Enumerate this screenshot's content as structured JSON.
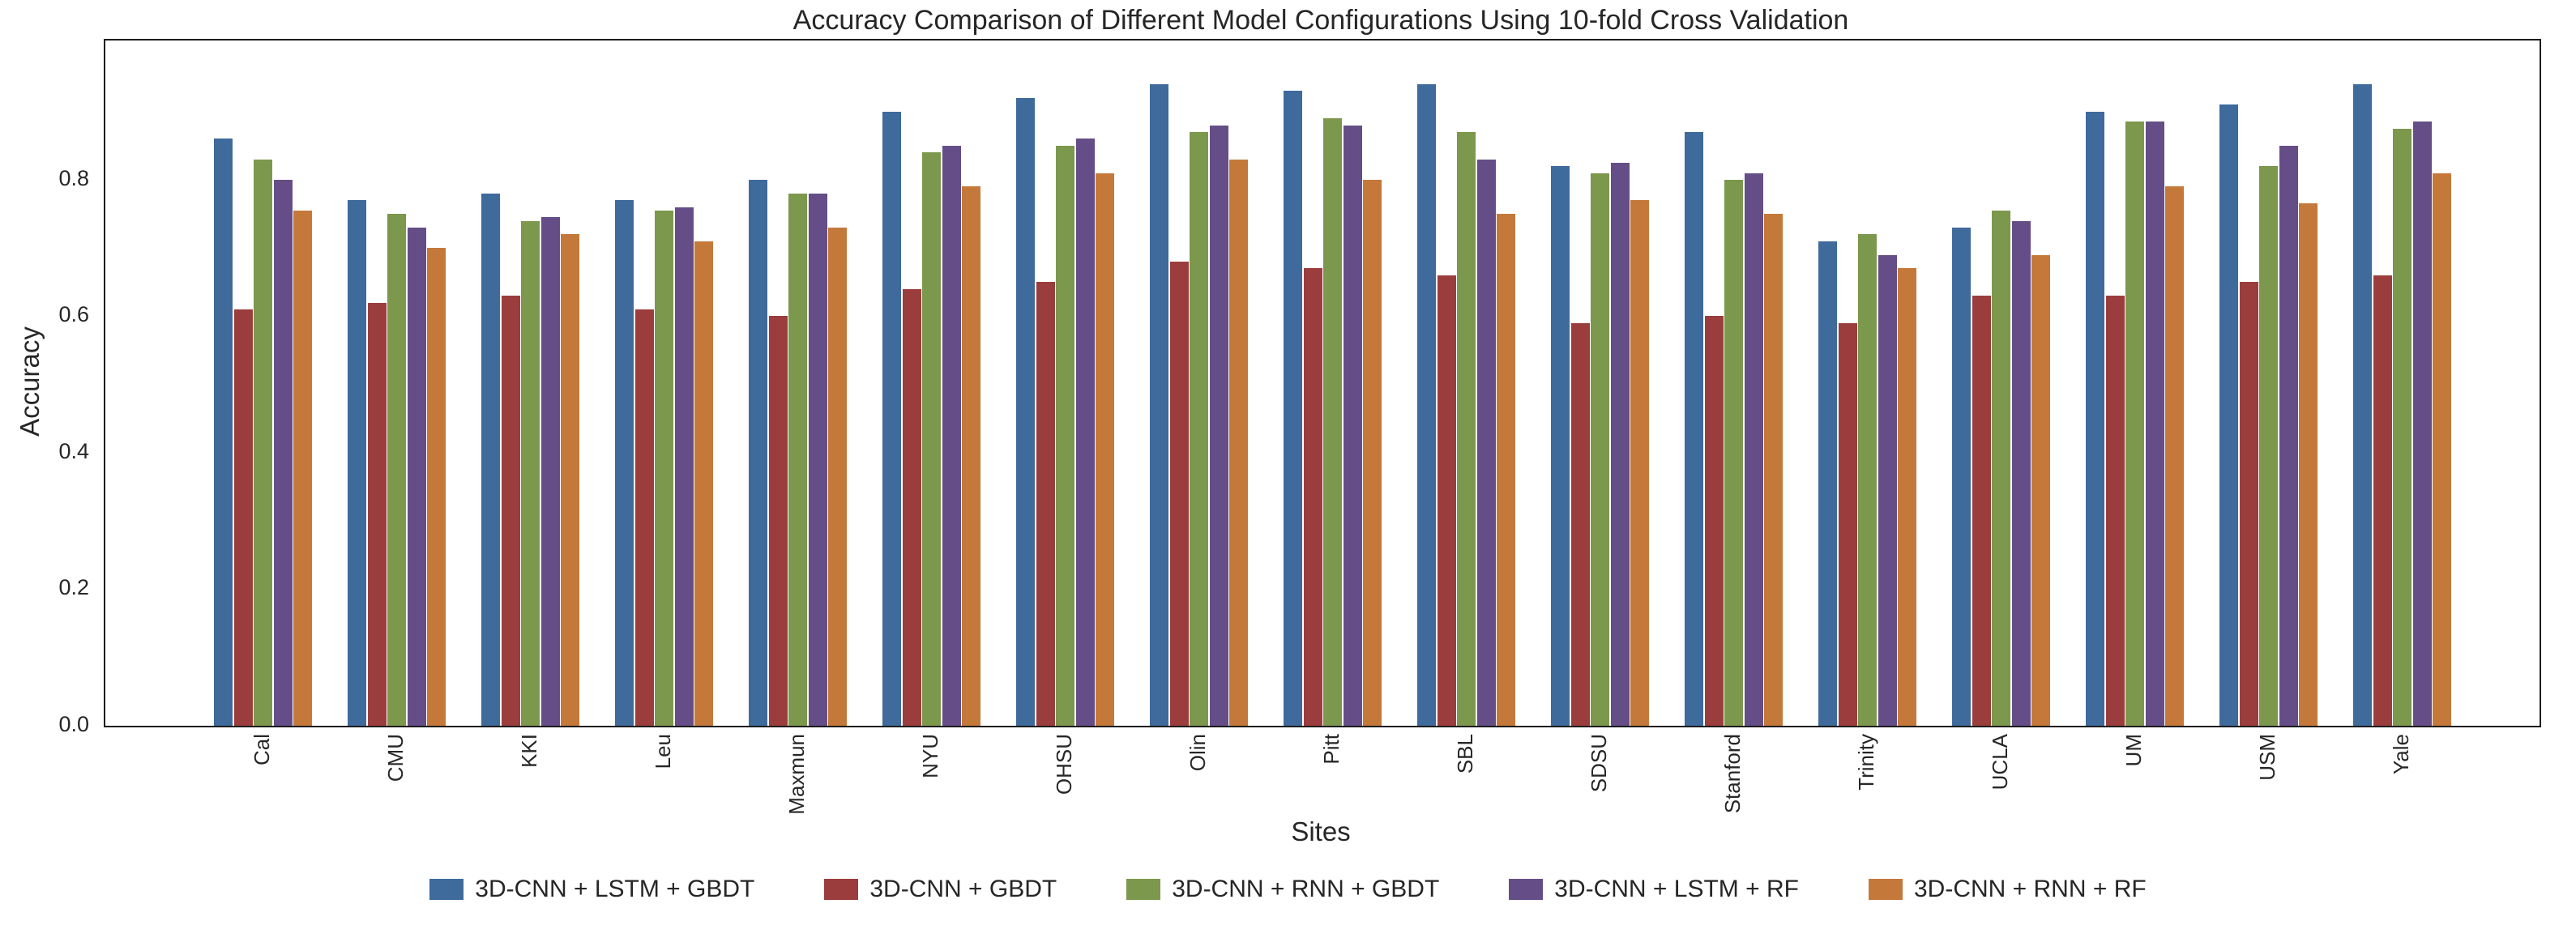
{
  "chart_data": {
    "type": "bar",
    "title": "Accuracy Comparison of Different Model Configurations Using 10-fold Cross Validation",
    "xlabel": "Sites",
    "ylabel": "Accuracy",
    "ylim": [
      0,
      1.004
    ],
    "yticks": [
      0.0,
      0.2,
      0.4,
      0.6,
      0.8
    ],
    "ytick_labels": [
      "0.0",
      "0.2",
      "0.4",
      "0.6",
      "0.8"
    ],
    "grid": false,
    "legend_position": "bottom",
    "background_color": "#ffffff",
    "spine_color": "#1c1c1c",
    "text_color": "#262626",
    "categories": [
      "Cal",
      "CMU",
      "KKI",
      "Leu",
      "Maxmun",
      "NYU",
      "OHSU",
      "Olin",
      "Pitt",
      "SBL",
      "SDSU",
      "Stanford",
      "Trinity",
      "UCLA",
      "UM",
      "USM",
      "Yale"
    ],
    "series": [
      {
        "name": "3D-CNN + LSTM + GBDT",
        "color": "#3F6A9C",
        "values": [
          0.86,
          0.77,
          0.78,
          0.77,
          0.8,
          0.9,
          0.92,
          0.94,
          0.93,
          0.94,
          0.82,
          0.87,
          0.71,
          0.73,
          0.9,
          0.91,
          0.94
        ]
      },
      {
        "name": "3D-CNN + GBDT",
        "color": "#9C3D3D",
        "values": [
          0.61,
          0.62,
          0.63,
          0.61,
          0.6,
          0.64,
          0.65,
          0.68,
          0.67,
          0.66,
          0.59,
          0.6,
          0.59,
          0.63,
          0.63,
          0.65,
          0.66
        ]
      },
      {
        "name": "3D-CNN + RNN + GBDT",
        "color": "#7C984C",
        "values": [
          0.83,
          0.75,
          0.74,
          0.755,
          0.78,
          0.84,
          0.85,
          0.87,
          0.89,
          0.87,
          0.81,
          0.8,
          0.72,
          0.755,
          0.885,
          0.82,
          0.875
        ]
      },
      {
        "name": "3D-CNN + LSTM + RF",
        "color": "#654E87",
        "values": [
          0.8,
          0.73,
          0.745,
          0.76,
          0.78,
          0.85,
          0.86,
          0.88,
          0.88,
          0.83,
          0.825,
          0.81,
          0.69,
          0.74,
          0.885,
          0.85,
          0.885
        ]
      },
      {
        "name": "3D-CNN + RNN + RF",
        "color": "#C4793A",
        "values": [
          0.755,
          0.7,
          0.72,
          0.71,
          0.73,
          0.79,
          0.81,
          0.83,
          0.8,
          0.75,
          0.77,
          0.75,
          0.67,
          0.69,
          0.79,
          0.765,
          0.81
        ]
      }
    ]
  }
}
